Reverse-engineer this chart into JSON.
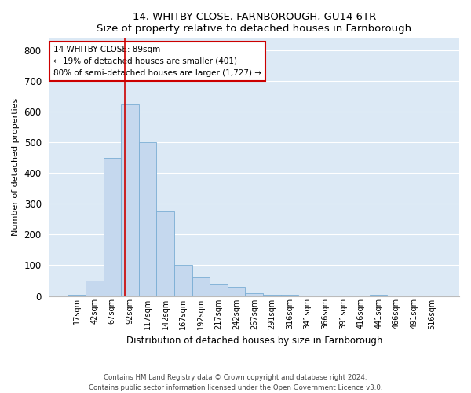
{
  "title": "14, WHITBY CLOSE, FARNBOROUGH, GU14 6TR",
  "subtitle": "Size of property relative to detached houses in Farnborough",
  "xlabel": "Distribution of detached houses by size in Farnborough",
  "ylabel": "Number of detached properties",
  "bar_color": "#c5d8ee",
  "bar_edgecolor": "#7aadd4",
  "background_color": "#dce9f5",
  "grid_color": "#ffffff",
  "bin_labels": [
    "17sqm",
    "42sqm",
    "67sqm",
    "92sqm",
    "117sqm",
    "142sqm",
    "167sqm",
    "192sqm",
    "217sqm",
    "242sqm",
    "267sqm",
    "291sqm",
    "316sqm",
    "341sqm",
    "366sqm",
    "391sqm",
    "416sqm",
    "441sqm",
    "466sqm",
    "491sqm",
    "516sqm"
  ],
  "bar_values": [
    5,
    50,
    450,
    625,
    500,
    275,
    100,
    60,
    40,
    30,
    10,
    5,
    5,
    0,
    0,
    0,
    0,
    5,
    0,
    0,
    0
  ],
  "ylim": [
    0,
    840
  ],
  "yticks": [
    0,
    100,
    200,
    300,
    400,
    500,
    600,
    700,
    800
  ],
  "vline_x": 2.72,
  "vline_color": "#cc0000",
  "annotation_text": "14 WHITBY CLOSE: 89sqm\n← 19% of detached houses are smaller (401)\n80% of semi-detached houses are larger (1,727) →",
  "annotation_box_edgecolor": "#cc0000",
  "footnote_line1": "Contains HM Land Registry data © Crown copyright and database right 2024.",
  "footnote_line2": "Contains public sector information licensed under the Open Government Licence v3.0."
}
